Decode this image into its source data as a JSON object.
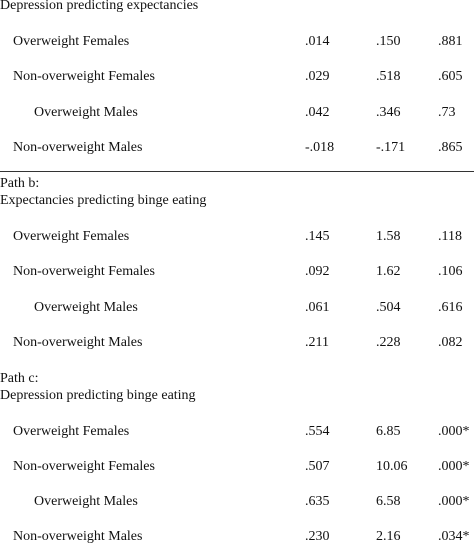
{
  "sections": [
    {
      "path_label": "",
      "title": "Depression predicting expectancies",
      "rows": [
        {
          "group": "Overweight Females",
          "values": [
            ".014",
            ".150",
            ".881"
          ]
        },
        {
          "group": "Non-overweight Females",
          "values": [
            ".029",
            ".518",
            ".605"
          ]
        },
        {
          "group": "Overweight Males",
          "values": [
            ".042",
            ".346",
            ".73"
          ]
        },
        {
          "group": "Non-overweight Males",
          "values": [
            "-.018",
            "-.171",
            ".865"
          ]
        }
      ]
    },
    {
      "path_label": "Path b:",
      "title": "Expectancies predicting binge eating",
      "rows": [
        {
          "group": "Overweight Females",
          "values": [
            ".145",
            "1.58",
            ".118"
          ]
        },
        {
          "group": "Non-overweight Females",
          "values": [
            ".092",
            "1.62",
            ".106"
          ]
        },
        {
          "group": "Overweight Males",
          "values": [
            ".061",
            ".504",
            ".616"
          ]
        },
        {
          "group": "Non-overweight Males",
          "values": [
            ".211",
            ".228",
            ".082"
          ]
        }
      ]
    },
    {
      "path_label": "Path c:",
      "title": "Depression predicting binge eating",
      "rows": [
        {
          "group": "Overweight Females",
          "values": [
            ".554",
            "6.85",
            ".000*"
          ]
        },
        {
          "group": "Non-overweight Females",
          "values": [
            ".507",
            "10.06",
            ".000*"
          ]
        },
        {
          "group": "Overweight Males",
          "values": [
            ".635",
            "6.58",
            ".000*"
          ]
        },
        {
          "group": "Non-overweight Males",
          "values": [
            ".230",
            "2.16",
            ".034*"
          ]
        }
      ]
    }
  ]
}
